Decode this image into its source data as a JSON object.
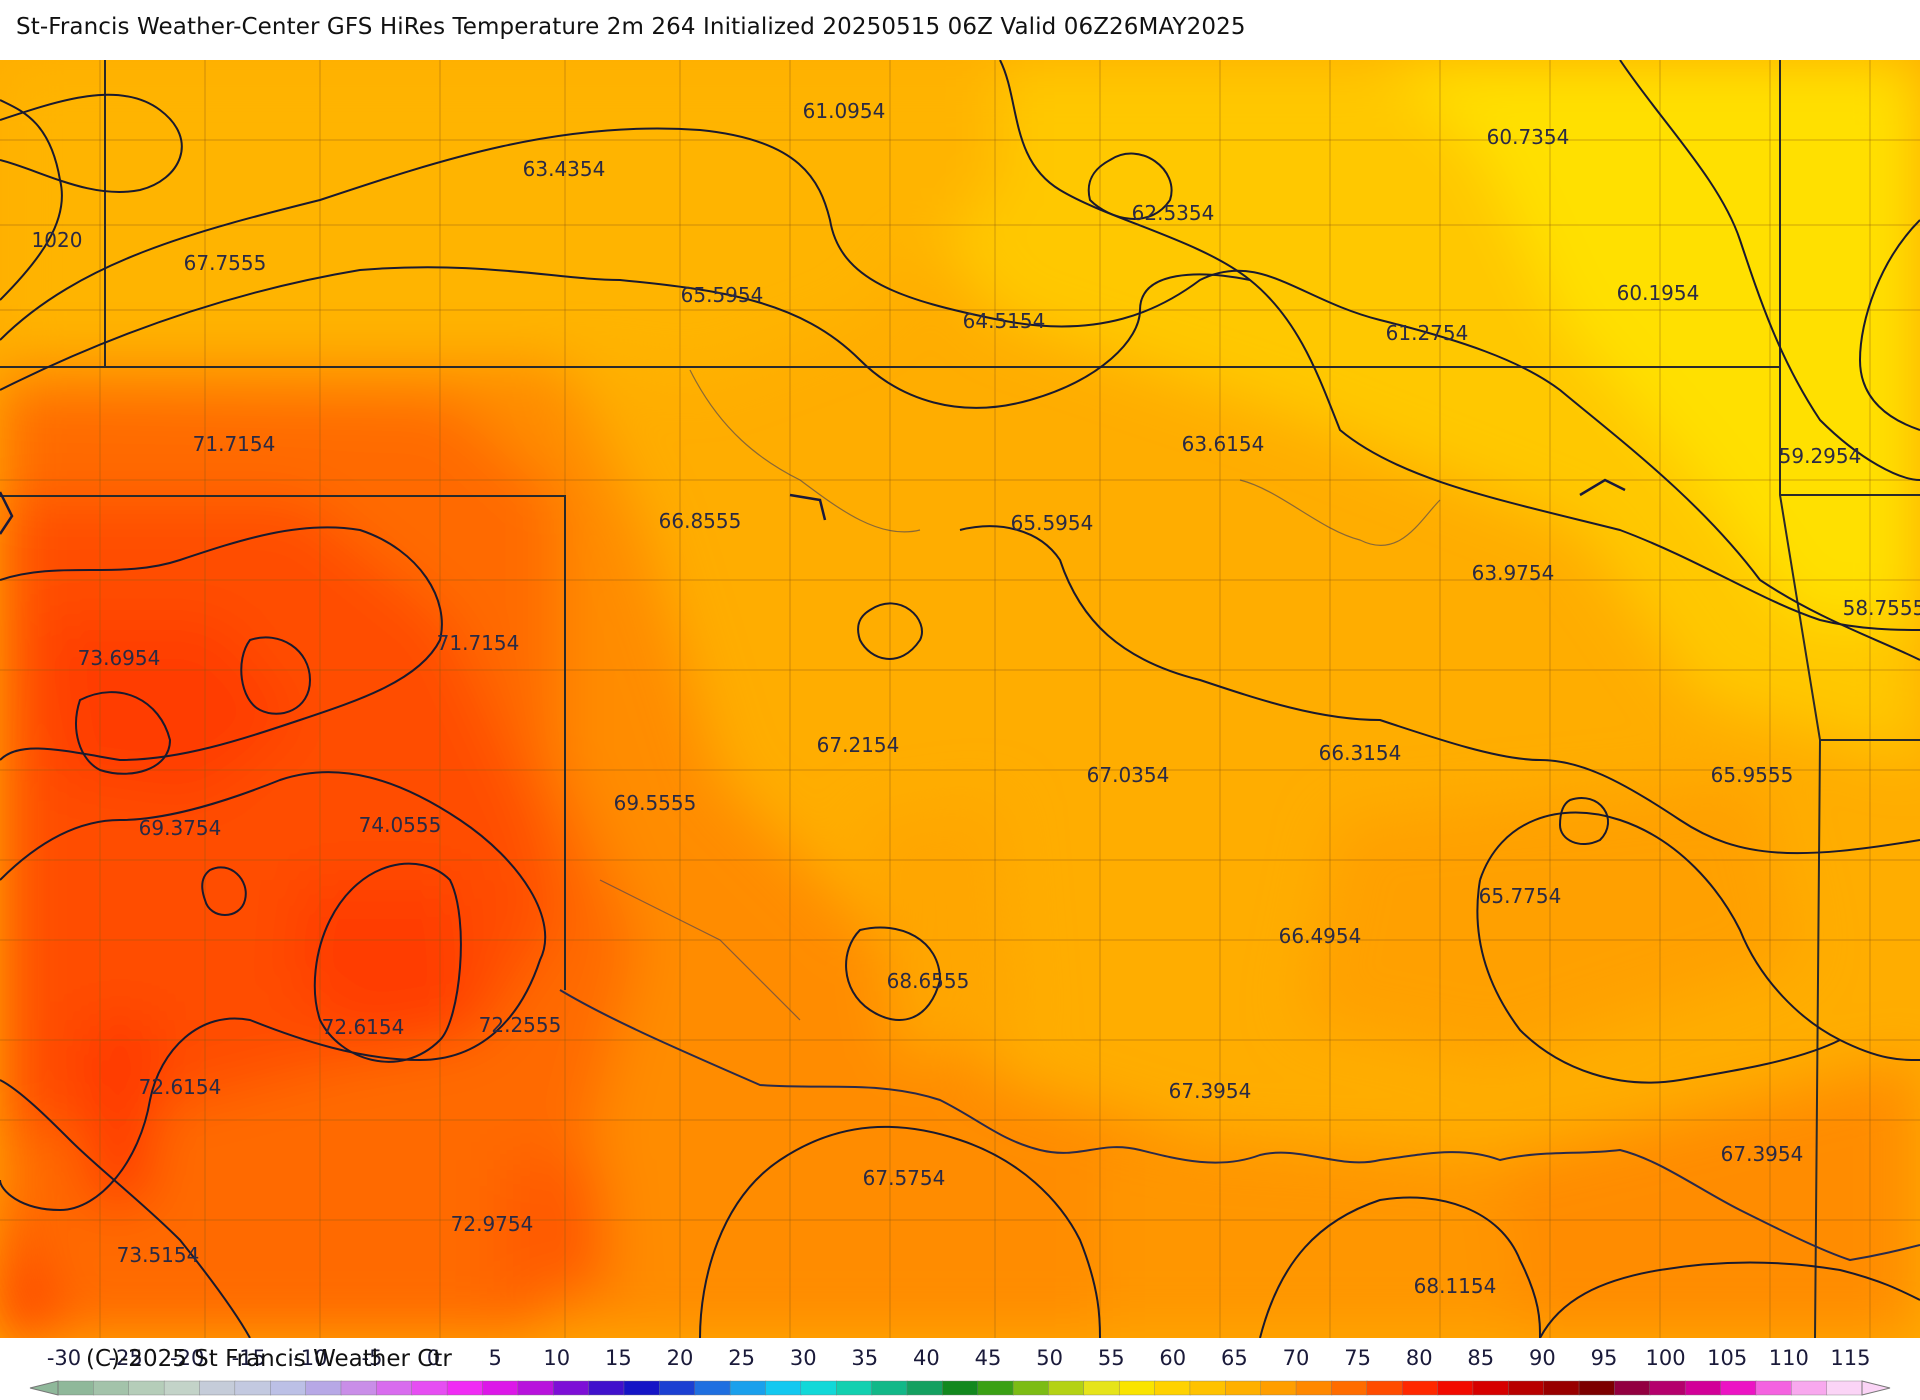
{
  "title": "St-Francis Weather-Center GFS HiRes Temperature 2m  264 Initialized 20250515 06Z Valid 06Z26MAY2025",
  "copyright": "(C)-2025 St Francis Weather Ctr",
  "pressure_label": "1020",
  "temperature_labels": [
    "61.0954",
    "60.7354",
    "63.4354",
    "62.5354",
    "67.7555",
    "65.5954",
    "64.5154",
    "61.2754",
    "60.1954",
    "71.7154",
    "63.6154",
    "59.2954",
    "66.8555",
    "65.5954",
    "63.9754",
    "58.7555",
    "73.6954",
    "71.7154",
    "67.2154",
    "67.0354",
    "66.3154",
    "65.9555",
    "69.5555",
    "69.3754",
    "74.0555",
    "65.7754",
    "68.6555",
    "66.4954",
    "72.6154",
    "72.2555",
    "72.6154",
    "67.3954",
    "67.3954",
    "67.5754",
    "72.9754",
    "73.5154",
    "68.1154"
  ],
  "colorbar": {
    "ticks": [
      "-30",
      "-25",
      "-20",
      "-15",
      "-10",
      "-5",
      "0",
      "5",
      "10",
      "15",
      "20",
      "25",
      "30",
      "35",
      "40",
      "45",
      "50",
      "55",
      "60",
      "65",
      "70",
      "75",
      "80",
      "85",
      "90",
      "95",
      "100",
      "105",
      "110",
      "115"
    ],
    "colors": [
      "#8fb89a",
      "#a3c3aa",
      "#b5cdb9",
      "#c3d3c8",
      "#c5ccd9",
      "#c3c9e0",
      "#bcc0e6",
      "#b7a8e6",
      "#c98ee8",
      "#d86cee",
      "#e64ef2",
      "#f02cf4",
      "#dc18e8",
      "#b812dc",
      "#7d0fd6",
      "#4011cc",
      "#1515c6",
      "#1b3fd2",
      "#1f6fe0",
      "#1aa0ec",
      "#13c8f0",
      "#12d8d8",
      "#12d0b0",
      "#12b888",
      "#14a060",
      "#12881e",
      "#3aa014",
      "#7cbc14",
      "#b4d214",
      "#e6e41a",
      "#fae400",
      "#ffd200",
      "#ffc200",
      "#ffb000",
      "#ff9e00",
      "#ff8800",
      "#ff6c00",
      "#ff4c00",
      "#ff2800",
      "#f20a00",
      "#d60000",
      "#b80000",
      "#980000",
      "#7c0000",
      "#920040",
      "#b4006c",
      "#d20098",
      "#ec14c4",
      "#f462e0",
      "#f8a8ee",
      "#fbd4f6"
    ]
  }
}
